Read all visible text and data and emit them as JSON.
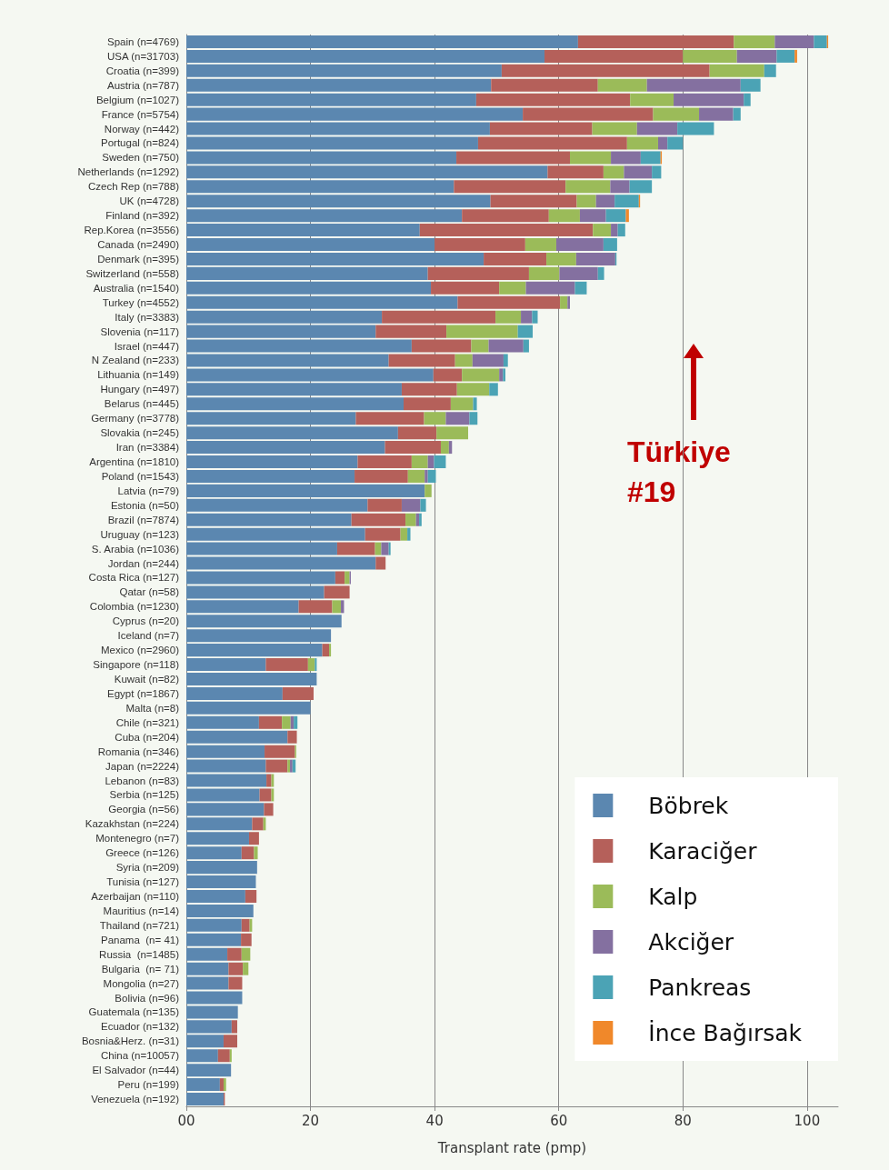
{
  "chart_data": {
    "type": "bar",
    "orientation": "horizontal",
    "stacked": true,
    "xlabel": "Transplant rate (pmp)",
    "xlim": [
      0,
      105
    ],
    "xticks": [
      {
        "value": 0,
        "label": "00"
      },
      20,
      40,
      60,
      80,
      100
    ],
    "grid": "x",
    "legend": "bottom right",
    "annotations": [
      "Türkiye #19"
    ],
    "categories": [
      "Spain (n=4769)",
      "USA (n=31703)",
      "Croatia (n=399)",
      "Austria (n=787)",
      "Belgium (n=1027)",
      "France (n=5754)",
      "Norway (n=442)",
      "Portugal (n=824)",
      "Sweden (n=750)",
      "Netherlands (n=1292)",
      "Czech Rep (n=788)",
      "UK (n=4728)",
      "Finland (n=392)",
      "Rep.Korea (n=3556)",
      "Canada (n=2490)",
      "Denmark (n=395)",
      "Switzerland (n=558)",
      "Australia (n=1540)",
      "Turkey (n=4552)",
      "Italy (n=3383)",
      "Slovenia (n=117)",
      "Israel (n=447)",
      "N Zealand (n=233)",
      "Lithuania (n=149)",
      "Hungary (n=497)",
      "Belarus (n=445)",
      "Germany (n=3778)",
      "Slovakia (n=245)",
      "Iran (n=3384)",
      "Argentina (n=1810)",
      "Poland (n=1543)",
      "Latvia (n=79)",
      "Estonia (n=50)",
      "Brazil (n=7874)",
      "Uruguay (n=123)",
      "S. Arabia (n=1036)",
      "Jordan (n=244)",
      "Costa Rica (n=127)",
      "Qatar (n=58)",
      "Colombia (n=1230)",
      "Cyprus (n=20)",
      "Iceland (n=7)",
      "Mexico (n=2960)",
      "Singapore (n=118)",
      "Kuwait (n=82)",
      "Egypt (n=1867)",
      "Malta (n=8)",
      "Chile (n=321)",
      "Cuba (n=204)",
      "Romania (n=346)",
      "Japan (n=2224)",
      "Lebanon (n=83)",
      "Serbia (n=125)",
      "Georgia (n=56)",
      "Kazakhstan (n=224)",
      "Montenegro (n=7)",
      "Greece (n=126)",
      "Syria (n=209)",
      "Tunisia (n=127)",
      "Azerbaijan (n=110)",
      "Mauritius (n=14)",
      "Thailand (n=721)",
      "Panama  (n= 41)",
      "Russia  (n=1485)",
      "Bulgaria  (n= 71)",
      "Mongolia (n=27)",
      "Bolivia (n=96)",
      "Guatemala (n=135)",
      "Ecuador (n=132)",
      "Bosnia&Herz. (n=31)",
      "China (n=10057)",
      "El Salvador (n=44)",
      "Peru (n=199)",
      "Venezuela (n=192)"
    ],
    "series": [
      {
        "name": "Böbrek",
        "color": "#5b87b0",
        "values": [
          63.1,
          57.7,
          50.8,
          49.1,
          46.7,
          54.2,
          48.9,
          47.0,
          43.5,
          58.2,
          43.1,
          49.0,
          44.4,
          37.6,
          40.0,
          47.9,
          38.9,
          39.4,
          43.7,
          31.5,
          30.5,
          36.3,
          32.6,
          39.8,
          34.7,
          35.0,
          27.3,
          34.1,
          32.0,
          27.6,
          27.1,
          38.4,
          29.2,
          26.6,
          28.8,
          24.3,
          30.5,
          24.0,
          22.2,
          18.1,
          25.0,
          23.3,
          21.9,
          12.8,
          21.0,
          15.5,
          20.0,
          11.7,
          16.3,
          12.6,
          12.8,
          12.9,
          11.8,
          12.5,
          10.6,
          10.1,
          8.9,
          11.4,
          11.2,
          9.5,
          10.8,
          8.9,
          8.8,
          6.6,
          6.8,
          6.8,
          9.0,
          8.3,
          7.3,
          6.0,
          5.1,
          7.2,
          5.4,
          6.0
        ]
      },
      {
        "name": "Karaciğer",
        "color": "#b5605a",
        "values": [
          25.1,
          22.3,
          33.5,
          17.2,
          24.8,
          21.0,
          16.5,
          24.0,
          18.3,
          9.0,
          18.0,
          13.9,
          14.0,
          27.9,
          14.6,
          10.1,
          16.3,
          11.0,
          16.5,
          18.3,
          11.4,
          9.6,
          10.7,
          4.6,
          8.9,
          7.6,
          11.0,
          6.2,
          9.0,
          8.7,
          8.6,
          0,
          5.5,
          8.7,
          5.7,
          6.1,
          1.6,
          1.5,
          4.1,
          5.4,
          0,
          0,
          1.1,
          6.8,
          0,
          5.0,
          0,
          3.7,
          1.5,
          4.9,
          3.5,
          0.8,
          1.9,
          1.5,
          1.8,
          1.6,
          2.0,
          0,
          0,
          1.8,
          0,
          1.3,
          1.7,
          2.3,
          2.3,
          2.2,
          0,
          0,
          0.9,
          2.2,
          1.9,
          0,
          0.6,
          0.2
        ]
      },
      {
        "name": "Kalp",
        "color": "#9bbb59",
        "values": [
          6.6,
          8.7,
          8.8,
          7.9,
          7.0,
          7.4,
          7.2,
          5.0,
          6.6,
          3.3,
          7.2,
          3.1,
          5.0,
          2.9,
          5.0,
          4.8,
          4.9,
          4.3,
          1.2,
          4.1,
          11.5,
          2.8,
          2.8,
          6.0,
          5.2,
          3.6,
          3.5,
          5.1,
          1.3,
          2.6,
          2.7,
          1.1,
          0,
          1.7,
          1.1,
          1.0,
          0,
          0.8,
          0,
          1.4,
          0,
          0,
          0.3,
          1.1,
          0,
          0,
          0,
          1.4,
          0,
          0.2,
          0.4,
          0.4,
          0.4,
          0,
          0.4,
          0,
          0.6,
          0,
          0,
          0,
          0,
          0.4,
          0,
          1.4,
          0.9,
          0,
          0,
          0,
          0,
          0,
          0.3,
          0,
          0.4,
          0
        ]
      },
      {
        "name": "Akciğer",
        "color": "#8470a0",
        "values": [
          6.3,
          6.4,
          0,
          15.1,
          11.3,
          5.5,
          6.5,
          1.5,
          4.8,
          4.5,
          3.1,
          3.0,
          4.2,
          1.1,
          7.6,
          6.3,
          6.2,
          7.9,
          0.4,
          1.8,
          0,
          5.6,
          5.0,
          0.6,
          0,
          0,
          3.8,
          0,
          0.5,
          1.0,
          0.5,
          0,
          3.0,
          0.5,
          0,
          1.2,
          0,
          0.2,
          0,
          0.5,
          0,
          0,
          0,
          0,
          0,
          0,
          0,
          0.5,
          0,
          0,
          0.4,
          0,
          0,
          0,
          0,
          0,
          0,
          0,
          0,
          0,
          0,
          0,
          0,
          0,
          0,
          0,
          0,
          0,
          0,
          0,
          0,
          0,
          0,
          0
        ]
      },
      {
        "name": "Pankreas",
        "color": "#4ba3b5",
        "values": [
          2.1,
          2.9,
          1.9,
          3.2,
          1.1,
          1.2,
          5.9,
          2.5,
          3.2,
          1.5,
          3.6,
          3.9,
          3.2,
          1.2,
          2.2,
          0.2,
          1.0,
          1.9,
          0,
          0.9,
          2.4,
          0.9,
          0.7,
          0.4,
          1.4,
          0.6,
          1.3,
          0,
          0,
          1.9,
          1.3,
          0,
          0.9,
          0.4,
          0.5,
          0.3,
          0,
          0,
          0,
          0,
          0,
          0,
          0,
          0.3,
          0,
          0,
          0,
          0.6,
          0,
          0,
          0.5,
          0,
          0,
          0,
          0,
          0,
          0,
          0,
          0,
          0,
          0,
          0,
          0,
          0,
          0,
          0,
          0,
          0,
          0,
          0,
          0,
          0,
          0,
          0
        ]
      },
      {
        "name": "İnce Bağırsak",
        "color": "#f0882a",
        "values": [
          0.2,
          0.4,
          0,
          0,
          0,
          0,
          0,
          0,
          0.2,
          0,
          0,
          0.2,
          0.5,
          0,
          0,
          0,
          0,
          0,
          0,
          0,
          0,
          0,
          0,
          0,
          0,
          0,
          0,
          0,
          0,
          0,
          0,
          0,
          0,
          0,
          0,
          0,
          0,
          0,
          0,
          0,
          0,
          0,
          0,
          0,
          0,
          0,
          0,
          0,
          0,
          0,
          0,
          0,
          0,
          0,
          0,
          0,
          0,
          0,
          0,
          0,
          0,
          0,
          0,
          0,
          0,
          0,
          0,
          0,
          0,
          0,
          0,
          0,
          0,
          0
        ]
      }
    ]
  }
}
